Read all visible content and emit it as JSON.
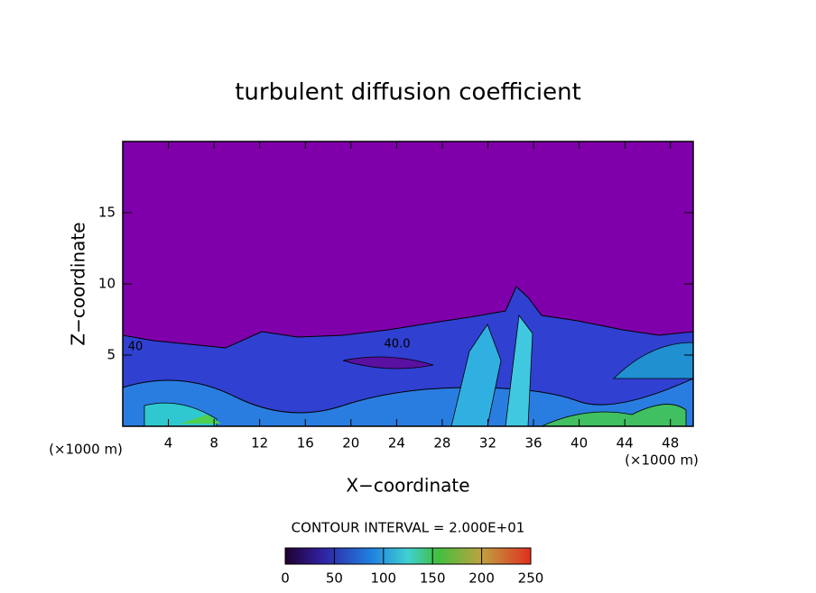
{
  "chart_data": {
    "type": "contour",
    "title": "turbulent diffusion coefficient",
    "x_label": "X−coordinate",
    "y_label": "Z−coordinate",
    "x_unit": "(×1000 m)",
    "y_unit": "(×1000 m)",
    "xlim": [
      0,
      50
    ],
    "xticks": [
      4,
      8,
      12,
      16,
      20,
      24,
      28,
      32,
      36,
      40,
      44,
      48
    ],
    "ylim": [
      0,
      20
    ],
    "yticks": [
      5,
      10,
      15
    ],
    "contour_interval": "CONTOUR INTERVAL = 2.000E+01",
    "annotations": [
      "40.0",
      "40"
    ],
    "colorbar": {
      "lim": [
        0,
        250
      ],
      "ticks": [
        0,
        50,
        100,
        150,
        200,
        250
      ]
    }
  }
}
